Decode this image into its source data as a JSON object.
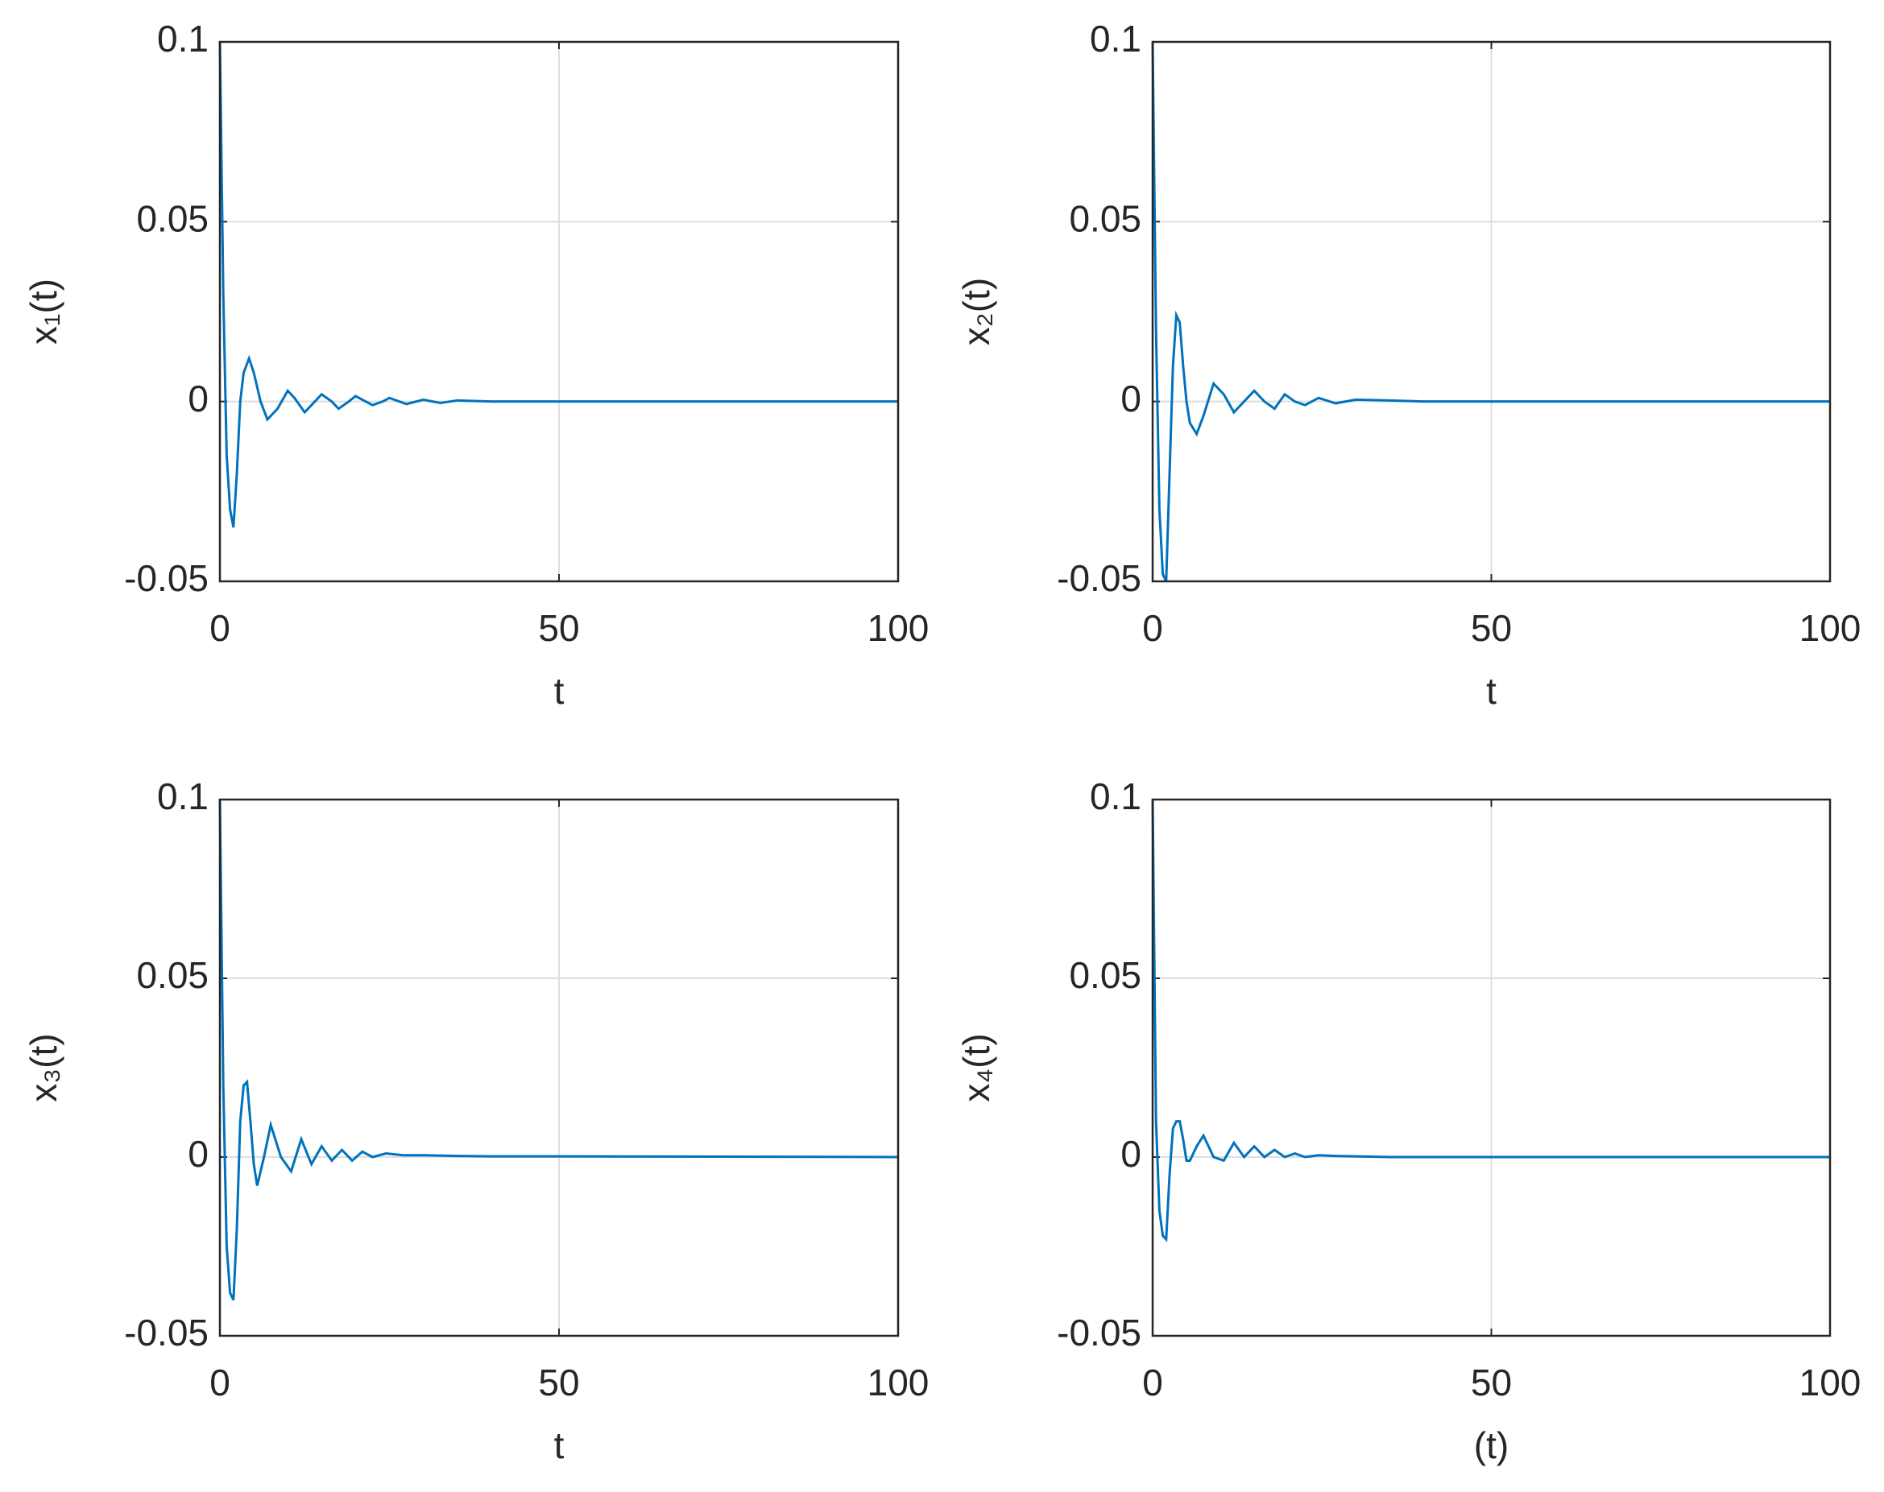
{
  "chart_data": [
    {
      "type": "line",
      "xlabel": "t",
      "ylabel": "x₁(t)",
      "color": "#0072bd",
      "grid": true,
      "xlim": [
        0,
        100
      ],
      "ylim": [
        -0.05,
        0.1
      ],
      "xticks": [
        0,
        50,
        100
      ],
      "yticks": [
        -0.05,
        0,
        0.05,
        0.1
      ],
      "x": [
        0,
        0.5,
        1,
        1.5,
        2,
        2.5,
        3,
        3.5,
        4.3,
        5,
        6,
        7,
        8.5,
        10,
        11,
        12.5,
        14,
        15,
        16.5,
        17.5,
        19,
        20,
        21.5,
        22.5,
        24,
        25,
        27.5,
        30,
        32.5,
        35,
        40,
        50,
        60,
        100
      ],
      "values": [
        0.1,
        0.03,
        -0.015,
        -0.03,
        -0.035,
        -0.02,
        0,
        0.008,
        0.012,
        0.008,
        0,
        -0.005,
        -0.002,
        0.003,
        0.001,
        -0.003,
        0,
        0.002,
        0,
        -0.002,
        0,
        0.0015,
        0,
        -0.001,
        0,
        0.001,
        -0.0007,
        0.0005,
        -0.0004,
        0.0003,
        0,
        0,
        0,
        0
      ]
    },
    {
      "type": "line",
      "xlabel": "t",
      "ylabel": "x₂(t)",
      "color": "#0072bd",
      "grid": true,
      "xlim": [
        0,
        100
      ],
      "ylim": [
        -0.05,
        0.1
      ],
      "xticks": [
        0,
        50,
        100
      ],
      "yticks": [
        -0.05,
        0,
        0.05,
        0.1
      ],
      "x": [
        0,
        0.5,
        1,
        1.5,
        2,
        2.5,
        3,
        3.5,
        4,
        4.5,
        5,
        5.5,
        6.5,
        7.5,
        9,
        10.5,
        12,
        13.5,
        15,
        16.5,
        18,
        19.5,
        21,
        22.5,
        24.5,
        27,
        30,
        35,
        40,
        50,
        100
      ],
      "values": [
        0.1,
        0.02,
        -0.03,
        -0.048,
        -0.05,
        -0.02,
        0.01,
        0.024,
        0.022,
        0.01,
        0,
        -0.006,
        -0.009,
        -0.004,
        0.005,
        0.002,
        -0.003,
        0,
        0.003,
        0,
        -0.002,
        0.002,
        0,
        -0.001,
        0.001,
        -0.0005,
        0.0005,
        0.0003,
        0,
        0,
        0
      ]
    },
    {
      "type": "line",
      "xlabel": "t",
      "ylabel": "x₃(t)",
      "color": "#0072bd",
      "grid": true,
      "xlim": [
        0,
        100
      ],
      "ylim": [
        -0.05,
        0.1
      ],
      "xticks": [
        0,
        50,
        100
      ],
      "yticks": [
        -0.05,
        0,
        0.05,
        0.1
      ],
      "x": [
        0,
        0.5,
        1,
        1.5,
        2,
        2.5,
        3,
        3.5,
        4,
        4.5,
        5,
        5.5,
        6.5,
        7.5,
        9,
        10.5,
        12,
        13.5,
        15,
        16.5,
        18,
        19.5,
        21,
        22.5,
        24.5,
        27,
        30,
        35,
        40,
        50,
        100
      ],
      "values": [
        0.1,
        0.02,
        -0.025,
        -0.038,
        -0.04,
        -0.02,
        0.01,
        0.02,
        0.021,
        0.01,
        -0.002,
        -0.008,
        0,
        0.009,
        0,
        -0.004,
        0.005,
        -0.002,
        0.003,
        -0.001,
        0.002,
        -0.001,
        0.0015,
        0,
        0.001,
        0.0005,
        0.0005,
        0.0003,
        0.0002,
        0.0002,
        0
      ]
    },
    {
      "type": "line",
      "xlabel": "(t)",
      "ylabel": "x₄(t)",
      "color": "#0072bd",
      "grid": true,
      "xlim": [
        0,
        100
      ],
      "ylim": [
        -0.05,
        0.1
      ],
      "xticks": [
        0,
        50,
        100
      ],
      "yticks": [
        -0.05,
        0,
        0.05,
        0.1
      ],
      "x": [
        0,
        0.5,
        1,
        1.5,
        2,
        2.5,
        3,
        3.5,
        4,
        4.5,
        5,
        5.5,
        6.5,
        7.5,
        9,
        10.5,
        12,
        13.5,
        15,
        16.5,
        18,
        19.5,
        21,
        22.5,
        24.5,
        27,
        30,
        35,
        40,
        50,
        100
      ],
      "values": [
        0.1,
        0.01,
        -0.015,
        -0.022,
        -0.023,
        -0.005,
        0.008,
        0.01,
        0.01,
        0.005,
        -0.001,
        -0.001,
        0.003,
        0.006,
        0,
        -0.001,
        0.004,
        0,
        0.003,
        0,
        0.002,
        0,
        0.001,
        0,
        0.0005,
        0.0003,
        0.0002,
        0,
        0,
        0,
        0
      ]
    }
  ]
}
